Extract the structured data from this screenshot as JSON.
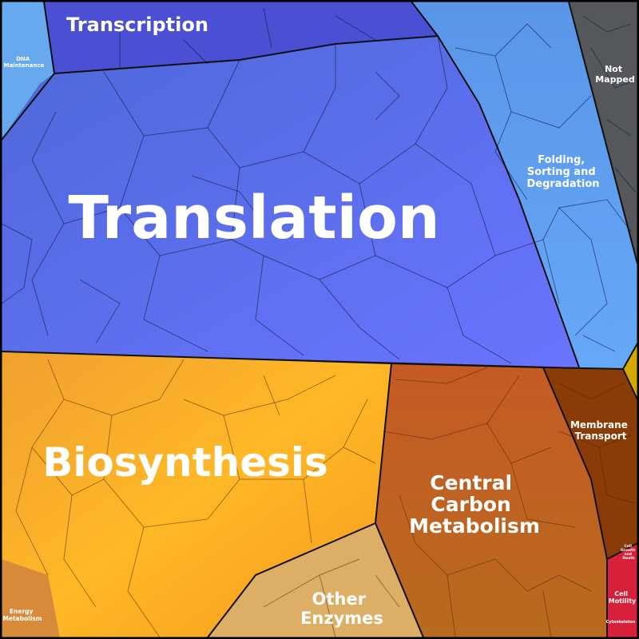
{
  "categories": [
    {
      "id": "transcription",
      "label": "Transcription",
      "color": "#4a4fd4"
    },
    {
      "id": "dna-maintenance",
      "label": "DNA Maintenance",
      "color": "#6fb0f0"
    },
    {
      "id": "translation",
      "label": "Translation",
      "color": "#5f6bf2"
    },
    {
      "id": "folding",
      "label": "Folding, Sorting and Degradation",
      "color": "#5e9cf0"
    },
    {
      "id": "not-mapped",
      "label": "Not Mapped",
      "color": "#55575b"
    },
    {
      "id": "biosynthesis",
      "label": "Biosynthesis",
      "color": "#f7a824"
    },
    {
      "id": "central-carbon",
      "label": "Central Carbon Metabolism",
      "color": "#b5651d"
    },
    {
      "id": "membrane-transport",
      "label": "Membrane Transport",
      "color": "#8a3c08"
    },
    {
      "id": "other-enzymes",
      "label": "Other Enzymes",
      "color": "#d9a55c"
    },
    {
      "id": "energy-metabolism",
      "label": "Energy Metabolism",
      "color": "#d7893a"
    },
    {
      "id": "cell-motility",
      "label": "Cell Motility",
      "color": "#d8203a"
    },
    {
      "id": "cytoskeleton",
      "label": "Cytoskeleton",
      "color": "#c41a30"
    },
    {
      "id": "cell-growth",
      "label": "Cell Growth and Death",
      "color": "#e23448"
    }
  ],
  "labels": {
    "transcription": "Transcription",
    "dna_line1": "DNA",
    "dna_line2": "Maintenance",
    "translation": "Translation",
    "notmapped_line1": "Not",
    "notmapped_line2": "Mapped",
    "folding_line1": "Folding,",
    "folding_line2": "Sorting and",
    "folding_line3": "Degradation",
    "biosynthesis": "Biosynthesis",
    "ccm_line1": "Central",
    "ccm_line2": "Carbon",
    "ccm_line3": "Metabolism",
    "membrane_line1": "Membrane",
    "membrane_line2": "Transport",
    "other_line1": "Other",
    "other_line2": "Enzymes",
    "energy_line1": "Energy",
    "energy_line2": "Metabolism",
    "motility_line1": "Cell",
    "motility_line2": "Motility",
    "cytoskeleton": "Cytoskeleton",
    "growth_line1": "Cell",
    "growth_line2": "Growth",
    "growth_line3": "and",
    "growth_line4": "Death"
  }
}
